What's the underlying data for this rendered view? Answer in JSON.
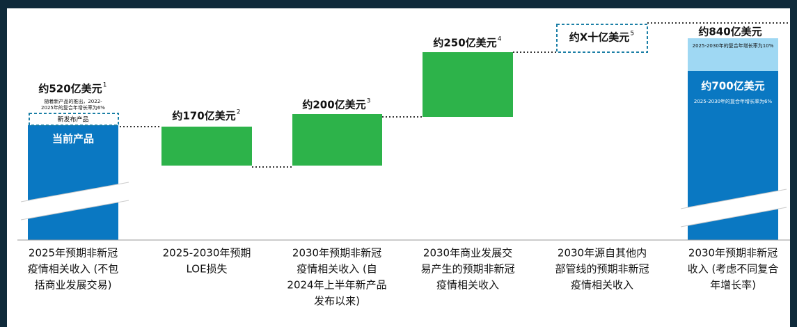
{
  "columns": [
    {
      "value_label": "约520亿美元",
      "sup": "1",
      "notes": [
        "随着新产品的推出，2022-",
        "2025年的复合年增长率为6%"
      ],
      "new_label": "新发布产品",
      "bar_label": "当前产品",
      "category": [
        "2025年预期非新冠",
        "疫情相关收入 (不包",
        "括商业发展交易)"
      ]
    },
    {
      "value_label": "约170亿美元",
      "sup": "2",
      "category": [
        "2025-2030年预期",
        "LOE损失"
      ]
    },
    {
      "value_label": "约200亿美元",
      "sup": "3",
      "category": [
        "2030年预期非新冠",
        "疫情相关收入 (自",
        "2024年上半年新产品",
        "发布以来)"
      ]
    },
    {
      "value_label": "约250亿美元",
      "sup": "4",
      "category": [
        "2030年商业发展交",
        "易产生的预期非新冠",
        "疫情相关收入"
      ]
    },
    {
      "value_label": "约X十亿美元",
      "sup": "5",
      "category": [
        "2030年源自其他内",
        "部管线的预期非新冠",
        "疫情相关收入"
      ]
    },
    {
      "value_label": "约840亿美元",
      "top_note": "2025-2030年的复合年增长率为10%",
      "inner_label": "约700亿美元",
      "inner_note": "2025-2030年的复合年增长率为6%",
      "category": [
        "2030年预期非新冠",
        "收入 (考虑不同复合",
        "年增长率)"
      ]
    }
  ]
}
